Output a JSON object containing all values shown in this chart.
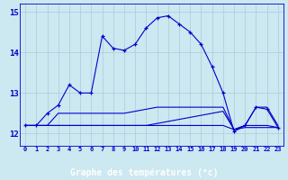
{
  "hours": [
    0,
    1,
    2,
    3,
    4,
    5,
    6,
    7,
    8,
    9,
    10,
    11,
    12,
    13,
    14,
    15,
    16,
    17,
    18,
    19,
    20,
    21,
    22,
    23
  ],
  "line_main": [
    12.2,
    12.2,
    12.5,
    12.7,
    13.2,
    13.0,
    13.0,
    14.4,
    14.1,
    14.05,
    14.2,
    14.6,
    14.85,
    14.9,
    14.7,
    14.5,
    14.2,
    13.65,
    13.0,
    12.05,
    12.2,
    12.65,
    12.6,
    12.15
  ],
  "line_flat1": [
    12.2,
    12.2,
    12.2,
    12.5,
    12.5,
    12.5,
    12.5,
    12.5,
    12.5,
    12.5,
    12.55,
    12.6,
    12.65,
    12.65,
    12.65,
    12.65,
    12.65,
    12.65,
    12.65,
    12.1,
    12.2,
    12.65,
    12.65,
    12.2
  ],
  "line_flat2": [
    12.2,
    12.2,
    12.2,
    12.2,
    12.2,
    12.2,
    12.2,
    12.2,
    12.2,
    12.2,
    12.2,
    12.2,
    12.25,
    12.3,
    12.35,
    12.4,
    12.45,
    12.5,
    12.55,
    12.1,
    12.2,
    12.2,
    12.2,
    12.15
  ],
  "line_flat3": [
    12.2,
    12.2,
    12.2,
    12.2,
    12.2,
    12.2,
    12.2,
    12.2,
    12.2,
    12.2,
    12.2,
    12.2,
    12.2,
    12.2,
    12.2,
    12.2,
    12.2,
    12.2,
    12.2,
    12.1,
    12.15,
    12.15,
    12.15,
    12.15
  ],
  "bg_color": "#cce8f0",
  "line_color": "#0000cc",
  "grid_color": "#aaccdd",
  "axis_label_bg": "#0000aa",
  "axis_label_fg": "#ffffff",
  "xlabel": "Graphe des températures (°c)",
  "yticks": [
    12,
    13,
    14,
    15
  ],
  "ylim": [
    11.7,
    15.2
  ],
  "xlim": [
    -0.5,
    23.5
  ],
  "tick_color": "#0000cc"
}
